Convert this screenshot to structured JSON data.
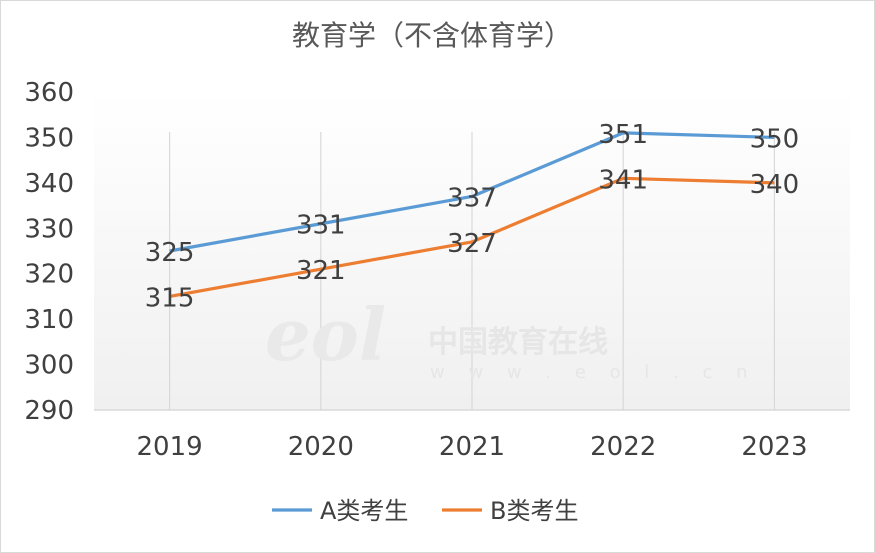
{
  "chart_data": {
    "type": "line",
    "title": "教育学（不含体育学）",
    "categories": [
      "2019",
      "2020",
      "2021",
      "2022",
      "2023"
    ],
    "series": [
      {
        "name": "A类考生",
        "values": [
          325,
          331,
          337,
          351,
          350
        ],
        "color": "#5b9bd5"
      },
      {
        "name": "B类考生",
        "values": [
          315,
          321,
          327,
          341,
          340
        ],
        "color": "#ed7d31"
      }
    ],
    "ylim": [
      290,
      360
    ],
    "yticks": [
      290,
      300,
      310,
      320,
      330,
      340,
      350,
      360
    ],
    "grid": "vertical",
    "legend": "bottom",
    "xlabel": "",
    "ylabel": ""
  },
  "watermark": {
    "logo": "eol",
    "text": "中国教育在线",
    "url": "w w w . e o l . c n"
  }
}
